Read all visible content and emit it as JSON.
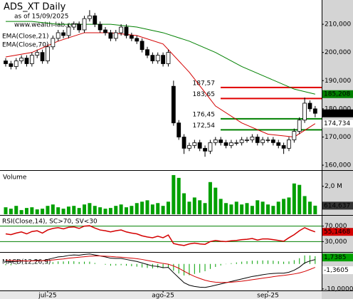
{
  "chart_data": [
    {
      "type": "candlestick",
      "title": "ADS_XT Daily",
      "subtitle": "as of 15/09/2025",
      "source": "www.wealth-lab.com",
      "open": [
        197,
        196,
        195,
        197,
        198,
        196,
        199,
        200,
        197,
        202,
        205,
        207,
        206,
        209,
        210,
        208,
        212,
        213,
        210,
        208,
        207,
        205,
        207,
        209,
        206,
        205,
        204,
        201,
        199,
        197,
        199,
        196,
        188,
        175,
        170,
        166,
        167,
        168,
        166,
        165,
        168,
        169,
        168,
        167,
        168,
        168,
        169,
        169,
        170,
        168,
        169,
        169,
        168,
        167,
        166,
        169,
        172,
        176,
        182,
        180
      ],
      "high": [
        198,
        197,
        198,
        199,
        199,
        200,
        201,
        201,
        203,
        206,
        208,
        208,
        210,
        211,
        211,
        213,
        215,
        214,
        211,
        209,
        208,
        208,
        210,
        210,
        207,
        206,
        205,
        202,
        200,
        200,
        200,
        201,
        190,
        176,
        171,
        168,
        169,
        169,
        167,
        169,
        170,
        170,
        169,
        169,
        169,
        170,
        170,
        171,
        171,
        170,
        170,
        170,
        169,
        168,
        170,
        173,
        177,
        184,
        183,
        181
      ],
      "low": [
        195,
        194,
        194,
        196,
        195,
        195,
        198,
        196,
        196,
        201,
        204,
        205,
        205,
        208,
        207,
        207,
        211,
        209,
        207,
        206,
        204,
        204,
        206,
        205,
        204,
        203,
        200,
        198,
        196,
        196,
        195,
        195,
        174,
        169,
        164,
        165,
        166,
        165,
        163,
        164,
        167,
        167,
        166,
        166,
        167,
        167,
        168,
        168,
        167,
        167,
        168,
        167,
        166,
        164,
        165,
        168,
        171,
        175,
        179,
        177
      ],
      "close": [
        196,
        195,
        197,
        198,
        196,
        199,
        200,
        197,
        202,
        205,
        207,
        206,
        209,
        210,
        208,
        212,
        213,
        210,
        208,
        207,
        205,
        207,
        209,
        206,
        205,
        204,
        201,
        199,
        197,
        199,
        196,
        200,
        175,
        170,
        166,
        167,
        168,
        166,
        165,
        168,
        169,
        168,
        167,
        168,
        168,
        169,
        169,
        170,
        168,
        169,
        169,
        168,
        167,
        166,
        169,
        172,
        176,
        182,
        180,
        178.4
      ],
      "close_label": "178,400",
      "series": [
        {
          "name": "EMA(Close,21)",
          "color": "#d40000",
          "x": [
            0,
            5,
            10,
            15,
            20,
            25,
            30,
            35,
            40,
            45,
            50,
            55,
            59
          ],
          "values": [
            198.4,
            200,
            204,
            207,
            207,
            206,
            203,
            193,
            181,
            175,
            171,
            170,
            174.734
          ],
          "last_value_label": "174,734"
        },
        {
          "name": "EMA(Close,70)",
          "color": "#008000",
          "x": [
            0,
            5,
            10,
            15,
            20,
            25,
            30,
            35,
            40,
            45,
            50,
            55,
            59
          ],
          "values": [
            211,
            211,
            210,
            210,
            210,
            209,
            207,
            204,
            200,
            195,
            191,
            187,
            185.208
          ],
          "last_value_label": "185,208"
        }
      ],
      "levels": [
        {
          "value": 187.57,
          "label": "187,57",
          "color": "#e00000"
        },
        {
          "value": 183.65,
          "label": "183,65",
          "color": "#e00000"
        },
        {
          "value": 176.45,
          "label": "176,45",
          "color": "#008000"
        },
        {
          "value": 172.54,
          "label": "172,54",
          "color": "#008000"
        }
      ],
      "ylim": [
        158.5,
        218.1
      ],
      "yticks": [
        {
          "value": 160,
          "label": "160,000"
        },
        {
          "value": 170,
          "label": "170,000"
        },
        {
          "value": 180,
          "label": "180,000"
        },
        {
          "value": 190,
          "label": "190,000"
        },
        {
          "value": 200,
          "label": "200,000"
        },
        {
          "value": 210,
          "label": "210,000"
        }
      ]
    },
    {
      "type": "bar",
      "title": "Volume",
      "color": "#00a000",
      "values": [
        500,
        400,
        600,
        300,
        450,
        500,
        350,
        400,
        600,
        700,
        500,
        400,
        550,
        600,
        450,
        700,
        800,
        600,
        500,
        400,
        450,
        600,
        700,
        500,
        600,
        800,
        900,
        1000,
        700,
        800,
        600,
        900,
        2800,
        2600,
        1500,
        900,
        1200,
        1000,
        800,
        2300,
        1900,
        1100,
        800,
        700,
        900,
        700,
        800,
        600,
        1000,
        900,
        700,
        600,
        900,
        1100,
        1200,
        2200,
        2100,
        1300,
        900,
        614.637
      ],
      "last_value_label": "614,637",
      "ylim": [
        0,
        3000
      ],
      "yticks": [
        {
          "value": 2000,
          "label": "2,0 M"
        }
      ]
    },
    {
      "type": "line",
      "title": "RSI(Close,14), SC>70, SV<30",
      "color": "#d40000",
      "band_color": "#008000",
      "values": [
        50,
        48,
        52,
        55,
        50,
        56,
        58,
        52,
        60,
        64,
        66,
        63,
        67,
        68,
        64,
        70,
        71,
        65,
        60,
        58,
        55,
        58,
        60,
        55,
        52,
        50,
        45,
        42,
        40,
        44,
        40,
        47,
        25,
        22,
        20,
        24,
        26,
        24,
        23,
        30,
        33,
        31,
        30,
        32,
        33,
        35,
        36,
        38,
        34,
        37,
        37,
        35,
        33,
        31,
        40,
        48,
        58,
        66,
        60,
        55.1468
      ],
      "last_value_label": "55,1468",
      "ylim": [
        5,
        95
      ],
      "yticks": [
        {
          "value": 30,
          "label": "30,000"
        },
        {
          "value": 70,
          "label": "70,000"
        }
      ]
    },
    {
      "type": "macd",
      "title": "MACD(12,26,9)",
      "histogram_color": "#00a000",
      "series": [
        {
          "name": "MACD",
          "color": "#000000",
          "values": [
            1.0,
            0.9,
            1.0,
            1.2,
            1.1,
            1.3,
            1.5,
            1.3,
            1.8,
            2.3,
            2.8,
            3.0,
            3.4,
            3.6,
            3.5,
            3.8,
            4.0,
            3.6,
            3.2,
            2.8,
            2.3,
            2.2,
            2.2,
            1.8,
            1.4,
            1.0,
            0.4,
            -0.2,
            -0.8,
            -1.0,
            -1.5,
            -1.4,
            -3.5,
            -5.5,
            -7.5,
            -8.5,
            -9.0,
            -9.3,
            -9.4,
            -9.0,
            -8.5,
            -8.0,
            -7.5,
            -7.0,
            -6.5,
            -6.0,
            -5.5,
            -5.0,
            -4.7,
            -4.3,
            -4.0,
            -3.8,
            -3.7,
            -3.7,
            -3.3,
            -2.5,
            -1.3,
            0.4,
            1.2,
            1.7385
          ],
          "last_value_label": "1,7385"
        },
        {
          "name": "Signal",
          "color": "#d40000",
          "values": [
            1.5,
            1.4,
            1.3,
            1.3,
            1.2,
            1.2,
            1.3,
            1.3,
            1.4,
            1.6,
            1.8,
            2.0,
            2.3,
            2.5,
            2.7,
            2.9,
            3.1,
            3.2,
            3.2,
            3.1,
            3.0,
            2.8,
            2.7,
            2.5,
            2.3,
            2.1,
            1.8,
            1.4,
            1.0,
            0.6,
            0.2,
            -0.1,
            -0.8,
            -1.7,
            -2.9,
            -4.0,
            -5.0,
            -5.8,
            -6.5,
            -7.0,
            -7.3,
            -7.4,
            -7.4,
            -7.3,
            -7.1,
            -6.9,
            -6.6,
            -6.3,
            -6.0,
            -5.7,
            -5.4,
            -5.1,
            -4.8,
            -4.6,
            -4.3,
            -4.0,
            -3.6,
            -3.0,
            -2.2,
            -1.3605
          ],
          "last_value_label": "-1,3605"
        }
      ],
      "ylim": [
        -10.6,
        4.2
      ],
      "yticks": [
        {
          "value": -10,
          "label": "-10,0000"
        }
      ],
      "xticks": [
        {
          "value": 8,
          "label": "jul-25"
        },
        {
          "value": 30,
          "label": "ago-25"
        },
        {
          "value": 50,
          "label": "sep-25"
        }
      ]
    }
  ]
}
